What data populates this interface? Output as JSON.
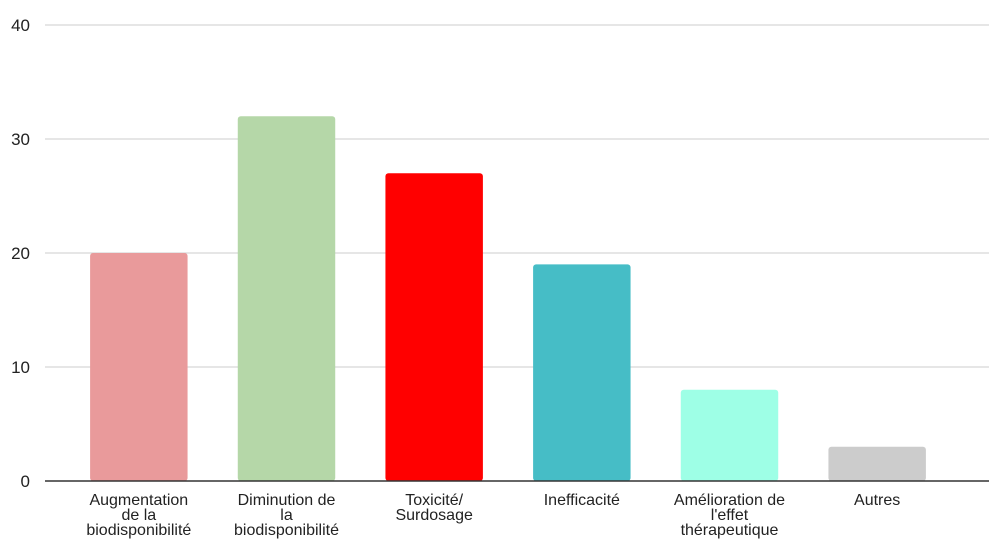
{
  "chart_data": {
    "type": "bar",
    "categories": [
      [
        "Augmentation",
        "de  la",
        "biodisponibilité"
      ],
      [
        "Diminution de",
        "la",
        "biodisponibilité"
      ],
      [
        "Toxicité/",
        "Surdosage"
      ],
      [
        "Inefficacité"
      ],
      [
        "Amélioration de",
        "l'effet",
        "thérapeutique"
      ],
      [
        "Autres"
      ]
    ],
    "values": [
      20,
      32,
      27,
      19,
      8,
      3
    ],
    "colors": [
      "#e99a9b",
      "#b5d7a8",
      "#ff0000",
      "#46bdc6",
      "#9effe6",
      "#cccccc"
    ],
    "ylim": [
      0,
      40
    ],
    "yticks": [
      "0",
      "10",
      "20",
      "30",
      "40"
    ],
    "grid": true,
    "title": "",
    "xlabel": "",
    "ylabel": ""
  }
}
